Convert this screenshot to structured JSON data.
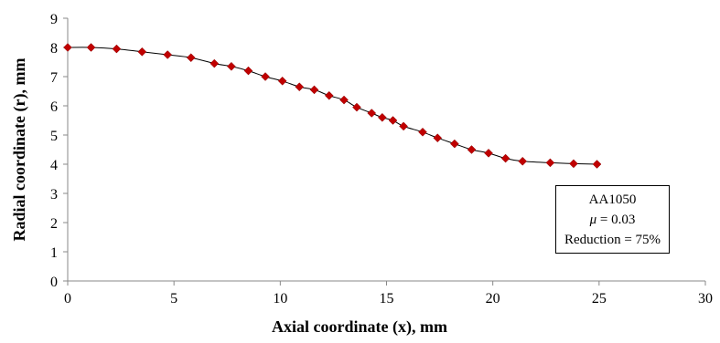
{
  "chart_data": {
    "type": "scatter",
    "title": "",
    "xlabel": "Axial coordinate (x), mm",
    "ylabel": "Radial coordinate (r), mm",
    "xlim": [
      0,
      30
    ],
    "ylim": [
      0,
      9
    ],
    "xticks": [
      "0",
      "5",
      "10",
      "15",
      "20",
      "25",
      "30"
    ],
    "yticks": [
      "0",
      "1",
      "2",
      "3",
      "4",
      "5",
      "6",
      "7",
      "8",
      "9"
    ],
    "grid": false,
    "marker_color": "#c00000",
    "line_color": "#000000",
    "series": [
      {
        "points": [
          [
            0.0,
            8.0
          ],
          [
            1.1,
            8.0
          ],
          [
            2.3,
            7.95
          ],
          [
            3.5,
            7.85
          ],
          [
            4.7,
            7.75
          ],
          [
            5.8,
            7.65
          ],
          [
            6.9,
            7.45
          ],
          [
            7.7,
            7.35
          ],
          [
            8.5,
            7.2
          ],
          [
            9.3,
            7.0
          ],
          [
            10.1,
            6.85
          ],
          [
            10.9,
            6.65
          ],
          [
            11.6,
            6.55
          ],
          [
            12.3,
            6.35
          ],
          [
            13.0,
            6.2
          ],
          [
            13.6,
            5.95
          ],
          [
            14.3,
            5.75
          ],
          [
            14.8,
            5.6
          ],
          [
            15.3,
            5.5
          ],
          [
            15.8,
            5.3
          ],
          [
            16.7,
            5.1
          ],
          [
            17.4,
            4.9
          ],
          [
            18.2,
            4.7
          ],
          [
            19.0,
            4.5
          ],
          [
            19.8,
            4.38
          ],
          [
            20.6,
            4.2
          ],
          [
            21.4,
            4.1
          ],
          [
            22.7,
            4.05
          ],
          [
            23.8,
            4.02
          ],
          [
            24.9,
            4.0
          ]
        ]
      }
    ],
    "annotation": {
      "line1": "AA1050",
      "line2_symbol": "μ",
      "line2_value": " = 0.03",
      "line3": "Reduction = 75%"
    }
  }
}
